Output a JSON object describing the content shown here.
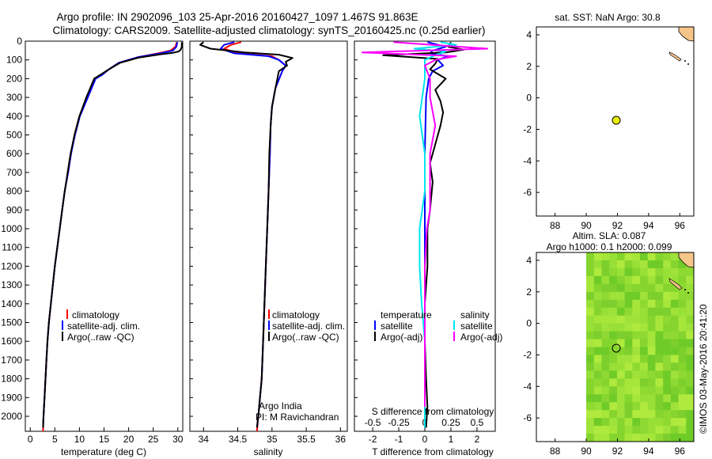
{
  "header": {
    "line1": "Argo profile: IN 2902096_103 25-Apr-2016 20160427_1097 1.467S 91.863E",
    "line2": "Climatology: CARS2009. Satellite-adjusted climatology: synTS_20160425.nc (0.25d earlier)"
  },
  "panel_temperature": {
    "xlabel": "temperature (deg C)"
  },
  "panel_salinity": {
    "xlabel": "salinity",
    "note1": "Argo India",
    "note2": "PI: M Ravichandran"
  },
  "panel_difference": {
    "xlabel_bottom": "T difference from climatology",
    "xlabel_top": "S difference from climatology"
  },
  "legend_ts": {
    "items": [
      {
        "label": "climatology",
        "color": "#ff0000"
      },
      {
        "label": "satellite-adj. clim.",
        "color": "#0000ff"
      },
      {
        "label": "Argo(..raw -QC)",
        "color": "#000000"
      }
    ]
  },
  "legend_diff": {
    "temp_heading": "temperature",
    "sal_heading": "salinity",
    "temp_items": [
      {
        "label": "satellite",
        "color": "#0000ff"
      },
      {
        "label": "Argo(-adj)",
        "color": "#000000"
      }
    ],
    "sal_items": [
      {
        "label": "satellite",
        "color": "#00e5ee"
      },
      {
        "label": "Argo(-adj)",
        "color": "#ff00ff"
      }
    ]
  },
  "map_sst": {
    "title": "sat. SST: NaN Argo: 30.8"
  },
  "map_sla": {
    "title1": "Altim. SLA: 0.087",
    "title2": "Argo h1000: 0.1 h2000: 0.099"
  },
  "footer": {
    "credit": "©IMOS 03-May-2016 20:41:20"
  },
  "colors": {
    "climatology": "#ff0000",
    "satellite": "#0000ff",
    "argo": "#000000",
    "salinity_satellite": "#00e5ee",
    "salinity_argo": "#ff00ff",
    "float_marker": "#e8f000",
    "land": "#f6c58a",
    "sla_field": "#8ee63a"
  },
  "chart_data": [
    {
      "type": "line",
      "panel": "temperature",
      "xlabel": "temperature (deg C)",
      "ylabel": "",
      "xlim": [
        -1,
        31
      ],
      "ylim": [
        2080,
        0
      ],
      "xticks": [
        0,
        5,
        10,
        15,
        20,
        25,
        30
      ],
      "yticks": [
        0,
        100,
        200,
        300,
        400,
        500,
        600,
        700,
        800,
        900,
        1000,
        1100,
        1200,
        1300,
        1400,
        1500,
        1600,
        1700,
        1800,
        1900,
        2000
      ],
      "series": [
        {
          "name": "climatology",
          "color": "#ff0000",
          "points": [
            [
              29.8,
              5
            ],
            [
              29.5,
              30
            ],
            [
              28.5,
              50
            ],
            [
              26,
              65
            ],
            [
              22,
              85
            ],
            [
              18,
              115
            ],
            [
              16,
              150
            ],
            [
              14.3,
              180
            ],
            [
              13,
              200
            ],
            [
              11.5,
              300
            ],
            [
              10,
              400
            ],
            [
              9,
              500
            ],
            [
              8.3,
              600
            ],
            [
              7.7,
              700
            ],
            [
              7,
              800
            ],
            [
              6.5,
              900
            ],
            [
              6,
              1000
            ],
            [
              5.5,
              1100
            ],
            [
              5,
              1200
            ],
            [
              4.6,
              1300
            ],
            [
              4.2,
              1400
            ],
            [
              3.8,
              1500
            ],
            [
              3.5,
              1600
            ],
            [
              3.3,
              1700
            ],
            [
              3.1,
              1800
            ],
            [
              2.9,
              1900
            ],
            [
              2.7,
              2000
            ],
            [
              2.6,
              2080
            ]
          ]
        },
        {
          "name": "satellite-adj. clim.",
          "color": "#0000ff",
          "points": [
            [
              29.9,
              5
            ],
            [
              29.7,
              30
            ],
            [
              29,
              50
            ],
            [
              26.5,
              65
            ],
            [
              22,
              85
            ],
            [
              18,
              115
            ],
            [
              16,
              150
            ],
            [
              14.6,
              180
            ],
            [
              13.3,
              200
            ],
            [
              11.7,
              300
            ],
            [
              10.1,
              400
            ],
            [
              9.1,
              500
            ],
            [
              8.3,
              600
            ],
            [
              7.7,
              700
            ],
            [
              7,
              800
            ],
            [
              6.5,
              900
            ],
            [
              6,
              1000
            ],
            [
              5.5,
              1100
            ],
            [
              5,
              1200
            ],
            [
              4.6,
              1300
            ],
            [
              4.2,
              1400
            ],
            [
              3.8,
              1500
            ],
            [
              3.5,
              1600
            ],
            [
              3.3,
              1700
            ],
            [
              3.1,
              1800
            ],
            [
              2.9,
              1900
            ],
            [
              2.7,
              2000
            ],
            [
              2.6,
              2060
            ]
          ]
        },
        {
          "name": "Argo(..raw -QC)",
          "color": "#000000",
          "points": [
            [
              30.8,
              5
            ],
            [
              30.8,
              30
            ],
            [
              30.6,
              45
            ],
            [
              30.2,
              55
            ],
            [
              29,
              62
            ],
            [
              26.5,
              70
            ],
            [
              22,
              88
            ],
            [
              18.3,
              115
            ],
            [
              16,
              150
            ],
            [
              14.2,
              180
            ],
            [
              13,
              200
            ],
            [
              11.4,
              300
            ],
            [
              10,
              400
            ],
            [
              9,
              500
            ],
            [
              8.2,
              600
            ],
            [
              7.6,
              700
            ],
            [
              7,
              800
            ],
            [
              6.5,
              900
            ],
            [
              6,
              1000
            ],
            [
              5.5,
              1100
            ],
            [
              5,
              1200
            ],
            [
              4.6,
              1300
            ],
            [
              4.2,
              1400
            ],
            [
              3.8,
              1500
            ],
            [
              3.5,
              1600
            ],
            [
              3.3,
              1700
            ],
            [
              3.1,
              1800
            ],
            [
              2.9,
              1900
            ],
            [
              2.7,
              2000
            ],
            [
              2.6,
              2060
            ]
          ]
        }
      ]
    },
    {
      "type": "line",
      "panel": "salinity",
      "xlabel": "salinity",
      "ylabel": "",
      "xlim": [
        33.8,
        36.1
      ],
      "ylim": [
        2080,
        0
      ],
      "xticks": [
        34,
        34.5,
        35,
        35.5,
        36
      ],
      "series": [
        {
          "name": "climatology",
          "color": "#ff0000",
          "points": [
            [
              34.55,
              5
            ],
            [
              34.4,
              20
            ],
            [
              34.3,
              40
            ],
            [
              34.5,
              65
            ],
            [
              35,
              80
            ],
            [
              35.1,
              100
            ],
            [
              35.2,
              130
            ],
            [
              35.15,
              160
            ],
            [
              35.05,
              250
            ],
            [
              35,
              350
            ],
            [
              34.98,
              450
            ],
            [
              34.97,
              600
            ],
            [
              34.95,
              800
            ],
            [
              34.93,
              1000
            ],
            [
              34.91,
              1200
            ],
            [
              34.89,
              1400
            ],
            [
              34.87,
              1600
            ],
            [
              34.85,
              1800
            ],
            [
              34.8,
              2000
            ],
            [
              34.78,
              2080
            ]
          ]
        },
        {
          "name": "satellite-adj. clim.",
          "color": "#0000ff",
          "points": [
            [
              34.45,
              5
            ],
            [
              34.3,
              20
            ],
            [
              34.25,
              40
            ],
            [
              34.45,
              65
            ],
            [
              34.95,
              80
            ],
            [
              35.1,
              100
            ],
            [
              35.2,
              130
            ],
            [
              35.15,
              160
            ],
            [
              35.05,
              250
            ],
            [
              35,
              350
            ],
            [
              34.98,
              450
            ],
            [
              34.97,
              600
            ],
            [
              34.95,
              800
            ],
            [
              34.93,
              1000
            ],
            [
              34.91,
              1200
            ],
            [
              34.89,
              1400
            ],
            [
              34.87,
              1600
            ],
            [
              34.85,
              1800
            ],
            [
              34.8,
              2000
            ],
            [
              34.78,
              2060
            ]
          ]
        },
        {
          "name": "Argo(..raw -QC)",
          "color": "#000000",
          "points": [
            [
              34.0,
              5
            ],
            [
              33.95,
              20
            ],
            [
              34.1,
              40
            ],
            [
              34.6,
              60
            ],
            [
              35.1,
              72
            ],
            [
              35.3,
              90
            ],
            [
              35.2,
              110
            ],
            [
              35.22,
              130
            ],
            [
              35.1,
              160
            ],
            [
              35.05,
              250
            ],
            [
              35,
              350
            ],
            [
              34.98,
              450
            ],
            [
              34.96,
              600
            ],
            [
              34.95,
              800
            ],
            [
              34.93,
              1000
            ],
            [
              34.91,
              1200
            ],
            [
              34.89,
              1400
            ],
            [
              34.87,
              1600
            ],
            [
              34.85,
              1800
            ],
            [
              34.8,
              2000
            ],
            [
              34.78,
              2060
            ]
          ]
        }
      ]
    },
    {
      "type": "line",
      "panel": "difference",
      "xlabel": "T difference from climatology",
      "x2label": "S difference from climatology",
      "xlim": [
        -2.7,
        2.7
      ],
      "ylim": [
        2080,
        0
      ],
      "xticks": [
        -2,
        -1,
        0,
        1,
        2
      ],
      "x2ticks": [
        -0.5,
        -0.25,
        0,
        0.25,
        0.5
      ],
      "series": [
        {
          "name": "temperature satellite",
          "color": "#0000ff",
          "points": [
            [
              0.1,
              5
            ],
            [
              0.8,
              30
            ],
            [
              0.3,
              50
            ],
            [
              0.2,
              65
            ],
            [
              0.9,
              80
            ],
            [
              0.5,
              100
            ],
            [
              0.7,
              130
            ],
            [
              0.3,
              160
            ],
            [
              0.15,
              200
            ],
            [
              0.05,
              300
            ],
            [
              0,
              600
            ],
            [
              0,
              2060
            ]
          ]
        },
        {
          "name": "temperature Argo(-adj)",
          "color": "#000000",
          "points": [
            [
              1,
              5
            ],
            [
              0.9,
              30
            ],
            [
              1.5,
              45
            ],
            [
              0.8,
              60
            ],
            [
              -1.6,
              75
            ],
            [
              0.5,
              95
            ],
            [
              0.4,
              120
            ],
            [
              0.2,
              150
            ],
            [
              0.8,
              200
            ],
            [
              0.4,
              260
            ],
            [
              0.6,
              320
            ],
            [
              0.7,
              380
            ],
            [
              0.6,
              450
            ],
            [
              0.4,
              550
            ],
            [
              0.2,
              650
            ],
            [
              0.3,
              750
            ],
            [
              0.2,
              900
            ],
            [
              0.1,
              1000
            ],
            [
              0.1,
              1200
            ],
            [
              0,
              1400
            ],
            [
              0,
              1600
            ],
            [
              0.05,
              1800
            ],
            [
              0.1,
              1950
            ],
            [
              0.05,
              2060
            ]
          ]
        },
        {
          "name": "salinity satellite",
          "color": "#00e5ee",
          "points": [
            [
              0.15,
              5
            ],
            [
              0.3,
              20
            ],
            [
              -0.1,
              40
            ],
            [
              0.2,
              55
            ],
            [
              0.1,
              75
            ],
            [
              0,
              100
            ],
            [
              0,
              200
            ],
            [
              -0.05,
              400
            ],
            [
              0,
              600
            ],
            [
              0,
              800
            ],
            [
              -0.05,
              1000
            ],
            [
              -0.05,
              1200
            ],
            [
              -0.03,
              1400
            ],
            [
              0,
              1600
            ],
            [
              0,
              1800
            ],
            [
              0,
              2000
            ],
            [
              0,
              2060
            ]
          ]
        },
        {
          "name": "salinity Argo(-adj)",
          "color": "#ff00ff",
          "points": [
            [
              -0.3,
              5
            ],
            [
              0.6,
              40
            ],
            [
              -0.6,
              60
            ],
            [
              0.3,
              80
            ],
            [
              0.1,
              100
            ],
            [
              0,
              130
            ],
            [
              0.05,
              200
            ],
            [
              0.05,
              300
            ],
            [
              0.1,
              450
            ],
            [
              0.05,
              600
            ],
            [
              0.05,
              800
            ],
            [
              0.05,
              900
            ],
            [
              0.02,
              1000
            ],
            [
              0,
              1200
            ],
            [
              0,
              1400
            ],
            [
              0,
              1600
            ],
            [
              0,
              1800
            ],
            [
              0,
              1950
            ]
          ]
        }
      ]
    },
    {
      "type": "scatter",
      "panel": "map_sst",
      "title": "sat. SST: NaN Argo: 30.8",
      "xlim": [
        86.8,
        96.9
      ],
      "ylim": [
        -7.5,
        4.5
      ],
      "xticks": [
        88,
        90,
        92,
        94,
        96
      ],
      "yticks": [
        -6,
        -4,
        -2,
        0,
        2,
        4
      ],
      "points": [
        [
          91.9,
          -1.5
        ]
      ]
    },
    {
      "type": "heatmap",
      "panel": "map_sla",
      "title": "Altim. SLA: 0.087",
      "subtitle": "Argo h1000: 0.1 h2000: 0.099",
      "xlim": [
        86.8,
        96.9
      ],
      "ylim": [
        -7.5,
        4.5
      ],
      "xticks": [
        88,
        90,
        92,
        94,
        96
      ],
      "yticks": [
        -6,
        -4,
        -2,
        0,
        2,
        4
      ],
      "field_extent_lon": [
        90,
        96.9
      ],
      "points": [
        [
          91.9,
          -1.5
        ]
      ]
    }
  ]
}
